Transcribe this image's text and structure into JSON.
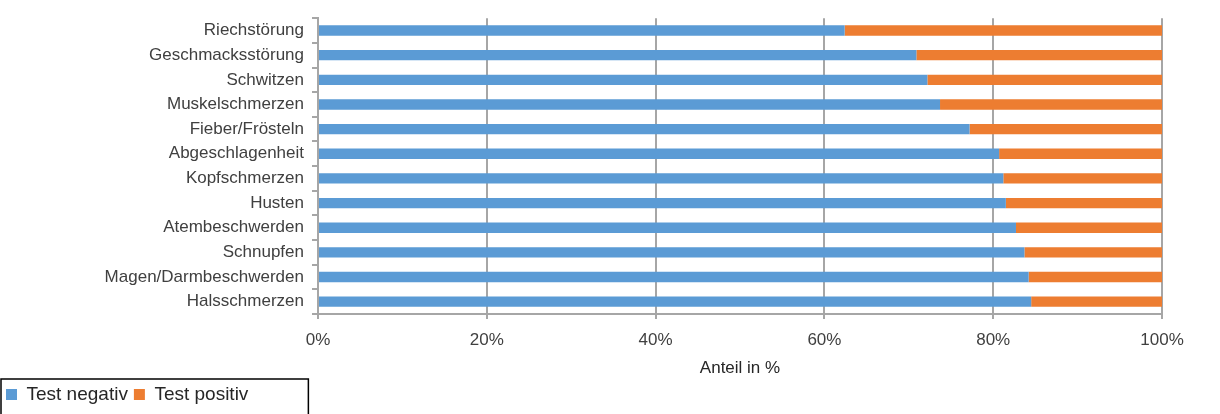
{
  "chart_data": {
    "type": "bar",
    "orientation": "horizontal",
    "stacked": true,
    "categories": [
      "Riechstörung",
      "Geschmacksstörung",
      "Schwitzen",
      "Muskelschmerzen",
      "Fieber/Frösteln",
      "Abgeschlagenheit",
      "Kopfschmerzen",
      "Husten",
      "Atembeschwerden",
      "Schnupfen",
      "Magen/Darmbeschwerden",
      "Halsschmerzen"
    ],
    "series": [
      {
        "name": "Test negativ",
        "color": "#5b9bd5",
        "values": [
          62.4,
          70.9,
          72.2,
          73.7,
          77.2,
          80.7,
          81.2,
          81.5,
          82.7,
          83.7,
          84.2,
          84.5
        ]
      },
      {
        "name": "Test positiv",
        "color": "#ed7d31",
        "values": [
          37.6,
          29.1,
          27.8,
          26.3,
          22.8,
          19.3,
          18.8,
          18.5,
          17.3,
          16.3,
          15.8,
          15.5
        ]
      }
    ],
    "xlim": [
      0,
      100
    ],
    "xticks": [
      {
        "value": 0,
        "label": "0%"
      },
      {
        "value": 20,
        "label": "20%"
      },
      {
        "value": 40,
        "label": "40%"
      },
      {
        "value": 60,
        "label": "60%"
      },
      {
        "value": 80,
        "label": "80%"
      },
      {
        "value": 100,
        "label": "100%"
      }
    ],
    "xlabel": "Anteil in %",
    "grid": "x",
    "legend": "bottom left"
  }
}
